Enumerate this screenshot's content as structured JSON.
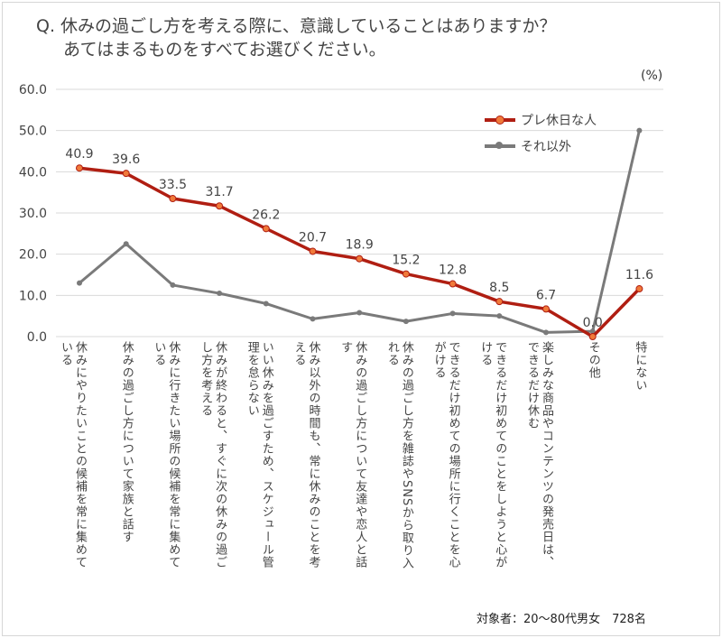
{
  "title_line1": "Q.  休みの過ごし方を考える際に、意識していることはありますか？",
  "title_line2": "あてはまるものをすべてお選びください。",
  "unit_label": "(%)",
  "footnote": "対象者：20～80代男女　728名",
  "colors": {
    "series1": "#b01e12",
    "series1_marker": "#f07a3a",
    "series2": "#7a7a7a",
    "grid": "#d9d9d9"
  },
  "chart_data": {
    "type": "line",
    "title": "休みの過ごし方を考える際に、意識していることはありますか？",
    "ylim": [
      0,
      60
    ],
    "yticks": [
      "0.0",
      "10.0",
      "20.0",
      "30.0",
      "40.0",
      "50.0",
      "60.0"
    ],
    "grid": true,
    "legend_position": "top-right",
    "categories": [
      "休みにやりたいことの候補を常に集めている",
      "休みの過ごし方について家族と話す",
      "休みに行きたい場所の候補を常に集めている",
      "休みが終わると、すぐに次の休みの過ごし方を考える",
      "いい休みを過ごすため、スケジュール管理を怠らない",
      "休み以外の時間も、常に休みのことを考える",
      "休みの過ごし方について友達や恋人と話す",
      "休みの過ごし方を雑誌やSNSから取り入れる",
      "できるだけ初めての場所に行くことを心がける",
      "できるだけ初めてのことをしようと心がける",
      "楽しみな商品やコンテンツの発売日は、できるだけ休む",
      "その他",
      "特にない"
    ],
    "series": [
      {
        "name": "プレ休日な人",
        "values": [
          40.9,
          39.6,
          33.5,
          31.7,
          26.2,
          20.7,
          18.9,
          15.2,
          12.8,
          8.5,
          6.7,
          0.0,
          11.6
        ],
        "labels": [
          "40.9",
          "39.6",
          "33.5",
          "31.7",
          "26.2",
          "20.7",
          "18.9",
          "15.2",
          "12.8",
          "8.5",
          "6.7",
          "0.0",
          "11.6"
        ]
      },
      {
        "name": "それ以外",
        "values": [
          13.0,
          22.5,
          12.5,
          10.5,
          8.0,
          4.3,
          5.8,
          3.7,
          5.6,
          5.0,
          1.0,
          1.3,
          50.0
        ]
      }
    ]
  }
}
